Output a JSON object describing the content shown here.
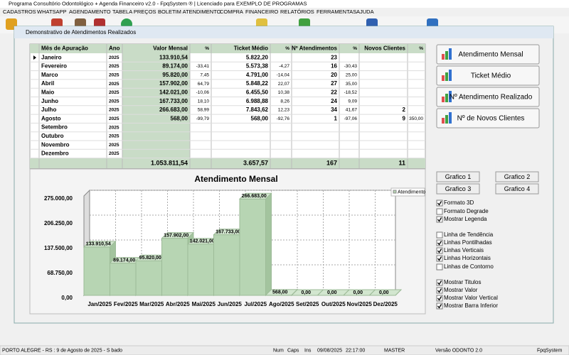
{
  "title_bar": "Programa Consultório Odontológico + Agenda Financeiro v2.0 - FpqSystem ® | Licenciado para  EXEMPLO DE PROGRAMAS",
  "menu": [
    "CADASTROS",
    "WHATSAPP",
    "AGENDAMENTO",
    "TABELA PREÇOS",
    "BOLETIM ATENDIMENTO",
    "COMPRA",
    "FINANCEIRO",
    "RELATÓRIOS",
    "FERRAMENTAS",
    "AJUDA"
  ],
  "window_title": "Demonstrativo de Atendimentos Realizados",
  "table": {
    "headers": [
      "Mês de Apuração",
      "Ano",
      "Valor Mensal",
      "%",
      "Ticket Médio",
      "%",
      "Nº Atendimentos",
      "%",
      "Novos Clientes",
      "%"
    ],
    "rows": [
      [
        "Janeiro",
        "2025",
        "133.910,54",
        null,
        "5.822,20",
        null,
        "23",
        null,
        null,
        null
      ],
      [
        "Fevereiro",
        "2025",
        "89.174,00",
        "-33,41",
        "5.573,38",
        "-4,27",
        "16",
        "-30,43",
        null,
        null
      ],
      [
        "Marco",
        "2025",
        "95.820,00",
        "7,45",
        "4.791,00",
        "-14,04",
        "20",
        "25,00",
        null,
        null
      ],
      [
        "Abril",
        "2025",
        "157.902,00",
        "64,79",
        "5.848,22",
        "22,07",
        "27",
        "35,00",
        null,
        null
      ],
      [
        "Maio",
        "2025",
        "142.021,00",
        "-10,06",
        "6.455,50",
        "10,38",
        "22",
        "-18,52",
        null,
        null
      ],
      [
        "Junho",
        "2025",
        "167.733,00",
        "18,10",
        "6.988,88",
        "8,26",
        "24",
        "9,09",
        null,
        null
      ],
      [
        "Julho",
        "2025",
        "266.683,00",
        "58,99",
        "7.843,62",
        "12,23",
        "34",
        "41,67",
        "2",
        null
      ],
      [
        "Agosto",
        "2025",
        "568,00",
        "-99,79",
        "568,00",
        "-92,76",
        "1",
        "-97,06",
        "9",
        "350,00"
      ],
      [
        "Setembro",
        "2025",
        null,
        null,
        null,
        null,
        null,
        null,
        null,
        null
      ],
      [
        "Outubro",
        "2025",
        null,
        null,
        null,
        null,
        null,
        null,
        null,
        null
      ],
      [
        "Novembro",
        "2025",
        null,
        null,
        null,
        null,
        null,
        null,
        null,
        null
      ],
      [
        "Dezembro",
        "2025",
        null,
        null,
        null,
        null,
        null,
        null,
        null,
        null
      ]
    ],
    "totals": [
      "1.053.811,54",
      "3.657,57",
      "167",
      "11"
    ]
  },
  "buttons": [
    "Atendimento Mensal",
    "Ticket Médio",
    "Nº Atendimento Realizado",
    "Nº de Novos Clientes"
  ],
  "chart_data": {
    "type": "bar",
    "title": "Atendimento Mensal",
    "categories": [
      "Jan/2025",
      "Fev/2025",
      "Mar/2025",
      "Abr/2025",
      "Mai/2025",
      "Jun/2025",
      "Jul/2025",
      "Ago/2025",
      "Set/2025",
      "Out/2025",
      "Nov/2025",
      "Dez/2025"
    ],
    "series": [
      {
        "name": "Atendimento",
        "color": "#b7d5b3",
        "values": [
          133910.54,
          89174,
          95820,
          157902,
          142021,
          167733,
          266683,
          568,
          0,
          0,
          0,
          0
        ],
        "value_labels": [
          "133.910,54",
          "89.174,00",
          "95.820,00",
          "157.902,00",
          "142.021,00",
          "167.733,00",
          "266.683,00",
          "568,00",
          "0,00",
          "0,00",
          "0,00",
          "0,00"
        ]
      }
    ],
    "ylim": [
      0,
      275000
    ],
    "yticks": [
      {
        "value": 0,
        "label": "0,00"
      },
      {
        "value": 68750,
        "label": "68.750,00"
      },
      {
        "value": 137500,
        "label": "137.500,00"
      },
      {
        "value": 206250,
        "label": "206.250,00"
      },
      {
        "value": 275000,
        "label": "275.000,00"
      }
    ],
    "grid": true
  },
  "chart_buttons": [
    "Grafico 1",
    "Grafico 2",
    "Grafico 3",
    "Grafico 4"
  ],
  "options": [
    {
      "label": "Formato 3D",
      "checked": true
    },
    {
      "label": "Formato Degrade",
      "checked": false
    },
    {
      "label": "Mostrar Legenda",
      "checked": true
    },
    {
      "label": "Linha de Tendência",
      "checked": false
    },
    {
      "label": "Linhas Pontilhadas",
      "checked": true
    },
    {
      "label": "Linhas Verticais",
      "checked": true
    },
    {
      "label": "Linhas Horizontais",
      "checked": true
    },
    {
      "label": "Linhas de Contorno",
      "checked": false
    },
    {
      "label": "Mostrar Titulos",
      "checked": true
    },
    {
      "label": "Mostrar Valor",
      "checked": true
    },
    {
      "label": "Mostrar Valor Vertical",
      "checked": true
    },
    {
      "label": "Mostrar Barra Inferior",
      "checked": true
    }
  ],
  "status_bar": [
    "PORTO ALEGRE - RS : 9 de Agosto de 2025 - S bado",
    "Num",
    "Caps",
    "Ins",
    "09/08/2025",
    "22:17:00",
    "MASTER",
    "Versão ODONTO 2.0",
    "FpqSystem"
  ]
}
